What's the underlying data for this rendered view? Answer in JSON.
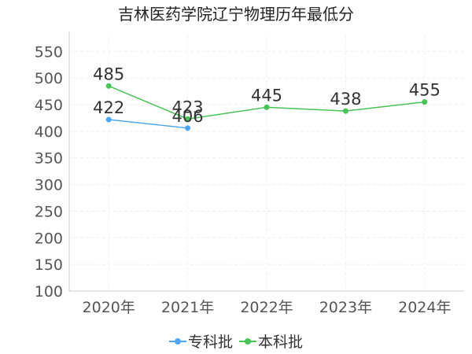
{
  "chart_data": {
    "type": "line",
    "title": "吉林医药学院辽宁物理历年最低分",
    "categories": [
      "2020年",
      "2021年",
      "2022年",
      "2023年",
      "2024年"
    ],
    "yticks": [
      100,
      150,
      200,
      250,
      300,
      350,
      400,
      450,
      500,
      550
    ],
    "ylim": [
      100,
      580
    ],
    "grid": true,
    "legend_position": "bottom",
    "series": [
      {
        "name": "专科批",
        "color": "#4da6f0",
        "values": [
          422,
          406,
          null,
          null,
          null
        ]
      },
      {
        "name": "本科批",
        "color": "#47c455",
        "values": [
          485,
          423,
          445,
          438,
          455
        ]
      }
    ]
  }
}
